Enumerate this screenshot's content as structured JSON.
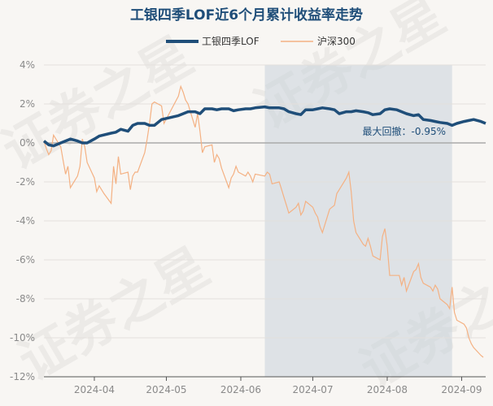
{
  "chart_data": {
    "type": "line",
    "title": "工银四季LOF近6个月累计收益率走势",
    "legend": [
      {
        "name": "工银四季LOF",
        "color": "#1f4e79"
      },
      {
        "name": "沪深300",
        "color": "#f4b183"
      }
    ],
    "ylim": [
      -12,
      4
    ],
    "yticks": [
      "4%",
      "2%",
      "0%",
      "-2%",
      "-4%",
      "-6%",
      "-8%",
      "-10%",
      "-12%"
    ],
    "xticks": [
      "2024-04",
      "2024-05",
      "2024-06",
      "2024-07",
      "2024-08",
      "2024-09"
    ],
    "annotation": "最大回撤：-0.95%",
    "drawdown_range": [
      "2024-06-11",
      "2024-08-28"
    ],
    "series": [
      {
        "name": "工银四季LOF",
        "color": "#1f4e79",
        "points": [
          [
            "2024-03-11",
            0.1
          ],
          [
            "2024-03-13",
            -0.1
          ],
          [
            "2024-03-15",
            -0.15
          ],
          [
            "2024-03-18",
            0.0
          ],
          [
            "2024-03-20",
            0.1
          ],
          [
            "2024-03-22",
            0.2
          ],
          [
            "2024-03-25",
            0.1
          ],
          [
            "2024-03-27",
            0.0
          ],
          [
            "2024-03-29",
            0.0
          ],
          [
            "2024-04-01",
            0.2
          ],
          [
            "2024-04-03",
            0.35
          ],
          [
            "2024-04-08",
            0.5
          ],
          [
            "2024-04-10",
            0.55
          ],
          [
            "2024-04-12",
            0.7
          ],
          [
            "2024-04-15",
            0.6
          ],
          [
            "2024-04-17",
            0.9
          ],
          [
            "2024-04-19",
            1.0
          ],
          [
            "2024-04-22",
            1.0
          ],
          [
            "2024-04-24",
            0.9
          ],
          [
            "2024-04-26",
            0.9
          ],
          [
            "2024-04-29",
            1.2
          ],
          [
            "2024-05-06",
            1.4
          ],
          [
            "2024-05-08",
            1.5
          ],
          [
            "2024-05-10",
            1.6
          ],
          [
            "2024-05-13",
            1.6
          ],
          [
            "2024-05-15",
            1.5
          ],
          [
            "2024-05-17",
            1.75
          ],
          [
            "2024-05-20",
            1.75
          ],
          [
            "2024-05-22",
            1.7
          ],
          [
            "2024-05-24",
            1.75
          ],
          [
            "2024-05-27",
            1.75
          ],
          [
            "2024-05-29",
            1.65
          ],
          [
            "2024-05-31",
            1.7
          ],
          [
            "2024-06-03",
            1.75
          ],
          [
            "2024-06-05",
            1.75
          ],
          [
            "2024-06-07",
            1.8
          ],
          [
            "2024-06-11",
            1.85
          ],
          [
            "2024-06-13",
            1.8
          ],
          [
            "2024-06-17",
            1.8
          ],
          [
            "2024-06-19",
            1.75
          ],
          [
            "2024-06-21",
            1.6
          ],
          [
            "2024-06-24",
            1.5
          ],
          [
            "2024-06-26",
            1.45
          ],
          [
            "2024-06-28",
            1.7
          ],
          [
            "2024-07-01",
            1.7
          ],
          [
            "2024-07-03",
            1.75
          ],
          [
            "2024-07-05",
            1.8
          ],
          [
            "2024-07-08",
            1.75
          ],
          [
            "2024-07-10",
            1.7
          ],
          [
            "2024-07-12",
            1.5
          ],
          [
            "2024-07-15",
            1.6
          ],
          [
            "2024-07-17",
            1.6
          ],
          [
            "2024-07-19",
            1.65
          ],
          [
            "2024-07-22",
            1.6
          ],
          [
            "2024-07-24",
            1.55
          ],
          [
            "2024-07-26",
            1.45
          ],
          [
            "2024-07-29",
            1.5
          ],
          [
            "2024-07-31",
            1.7
          ],
          [
            "2024-08-02",
            1.75
          ],
          [
            "2024-08-05",
            1.7
          ],
          [
            "2024-08-07",
            1.6
          ],
          [
            "2024-08-09",
            1.5
          ],
          [
            "2024-08-12",
            1.4
          ],
          [
            "2024-08-14",
            1.45
          ],
          [
            "2024-08-16",
            1.2
          ],
          [
            "2024-08-19",
            1.15
          ],
          [
            "2024-08-21",
            1.1
          ],
          [
            "2024-08-23",
            1.05
          ],
          [
            "2024-08-26",
            1.0
          ],
          [
            "2024-08-28",
            0.9
          ],
          [
            "2024-08-30",
            1.0
          ],
          [
            "2024-09-02",
            1.1
          ],
          [
            "2024-09-04",
            1.15
          ],
          [
            "2024-09-06",
            1.2
          ],
          [
            "2024-09-09",
            1.1
          ],
          [
            "2024-09-11",
            1.0
          ]
        ]
      },
      {
        "name": "沪深300",
        "color": "#f4b183",
        "points": [
          [
            "2024-03-11",
            0.1
          ],
          [
            "2024-03-12",
            -0.3
          ],
          [
            "2024-03-13",
            -0.6
          ],
          [
            "2024-03-14",
            -0.4
          ],
          [
            "2024-03-15",
            0.4
          ],
          [
            "2024-03-18",
            -0.2
          ],
          [
            "2024-03-19",
            -0.9
          ],
          [
            "2024-03-20",
            -1.6
          ],
          [
            "2024-03-21",
            -1.2
          ],
          [
            "2024-03-22",
            -2.3
          ],
          [
            "2024-03-25",
            -1.7
          ],
          [
            "2024-03-26",
            -1.2
          ],
          [
            "2024-03-27",
            0.2
          ],
          [
            "2024-03-28",
            -0.2
          ],
          [
            "2024-03-29",
            -1.0
          ],
          [
            "2024-04-01",
            -1.8
          ],
          [
            "2024-04-02",
            -2.5
          ],
          [
            "2024-04-03",
            -2.2
          ],
          [
            "2024-04-05",
            -2.6
          ],
          [
            "2024-04-08",
            -3.1
          ],
          [
            "2024-04-09",
            -1.2
          ],
          [
            "2024-04-10",
            -2.1
          ],
          [
            "2024-04-11",
            -0.7
          ],
          [
            "2024-04-12",
            -1.6
          ],
          [
            "2024-04-15",
            -1.5
          ],
          [
            "2024-04-16",
            -2.4
          ],
          [
            "2024-04-17",
            -1.7
          ],
          [
            "2024-04-18",
            -1.5
          ],
          [
            "2024-04-19",
            -1.5
          ],
          [
            "2024-04-22",
            -0.5
          ],
          [
            "2024-04-23",
            0.2
          ],
          [
            "2024-04-24",
            1.0
          ],
          [
            "2024-04-25",
            2.0
          ],
          [
            "2024-04-26",
            2.1
          ],
          [
            "2024-04-29",
            1.9
          ],
          [
            "2024-04-30",
            1.0
          ],
          [
            "2024-05-06",
            2.4
          ],
          [
            "2024-05-07",
            2.9
          ],
          [
            "2024-05-08",
            2.6
          ],
          [
            "2024-05-09",
            2.2
          ],
          [
            "2024-05-10",
            2.0
          ],
          [
            "2024-05-13",
            0.8
          ],
          [
            "2024-05-14",
            1.5
          ],
          [
            "2024-05-15",
            0.6
          ],
          [
            "2024-05-16",
            -0.5
          ],
          [
            "2024-05-17",
            -0.2
          ],
          [
            "2024-05-20",
            -0.1
          ],
          [
            "2024-05-21",
            -1.0
          ],
          [
            "2024-05-22",
            -0.6
          ],
          [
            "2024-05-23",
            -0.8
          ],
          [
            "2024-05-24",
            -1.3
          ],
          [
            "2024-05-27",
            -2.3
          ],
          [
            "2024-05-28",
            -1.8
          ],
          [
            "2024-05-29",
            -1.6
          ],
          [
            "2024-05-30",
            -1.2
          ],
          [
            "2024-05-31",
            -1.5
          ],
          [
            "2024-06-03",
            -1.7
          ],
          [
            "2024-06-04",
            -1.5
          ],
          [
            "2024-06-05",
            -1.7
          ],
          [
            "2024-06-06",
            -2.0
          ],
          [
            "2024-06-07",
            -1.6
          ],
          [
            "2024-06-11",
            -1.7
          ],
          [
            "2024-06-12",
            -1.5
          ],
          [
            "2024-06-13",
            -1.6
          ],
          [
            "2024-06-14",
            -2.1
          ],
          [
            "2024-06-17",
            -2.0
          ],
          [
            "2024-06-18",
            -2.4
          ],
          [
            "2024-06-19",
            -2.8
          ],
          [
            "2024-06-20",
            -3.2
          ],
          [
            "2024-06-21",
            -3.6
          ],
          [
            "2024-06-24",
            -3.3
          ],
          [
            "2024-06-25",
            -3.1
          ],
          [
            "2024-06-26",
            -3.7
          ],
          [
            "2024-06-27",
            -3.5
          ],
          [
            "2024-06-28",
            -3.0
          ],
          [
            "2024-07-01",
            -3.3
          ],
          [
            "2024-07-02",
            -3.6
          ],
          [
            "2024-07-03",
            -3.8
          ],
          [
            "2024-07-04",
            -4.3
          ],
          [
            "2024-07-05",
            -4.6
          ],
          [
            "2024-07-08",
            -3.4
          ],
          [
            "2024-07-09",
            -3.3
          ],
          [
            "2024-07-10",
            -3.2
          ],
          [
            "2024-07-11",
            -2.6
          ],
          [
            "2024-07-12",
            -2.4
          ],
          [
            "2024-07-15",
            -1.8
          ],
          [
            "2024-07-16",
            -1.5
          ],
          [
            "2024-07-17",
            -2.5
          ],
          [
            "2024-07-18",
            -4.0
          ],
          [
            "2024-07-19",
            -4.6
          ],
          [
            "2024-07-22",
            -5.2
          ],
          [
            "2024-07-23",
            -5.3
          ],
          [
            "2024-07-24",
            -4.9
          ],
          [
            "2024-07-25",
            -5.3
          ],
          [
            "2024-07-26",
            -5.8
          ],
          [
            "2024-07-29",
            -6.0
          ],
          [
            "2024-07-30",
            -4.8
          ],
          [
            "2024-07-31",
            -4.4
          ],
          [
            "2024-08-01",
            -5.3
          ],
          [
            "2024-08-02",
            -6.8
          ],
          [
            "2024-08-05",
            -6.8
          ],
          [
            "2024-08-06",
            -6.8
          ],
          [
            "2024-08-07",
            -7.3
          ],
          [
            "2024-08-08",
            -6.9
          ],
          [
            "2024-08-09",
            -7.6
          ],
          [
            "2024-08-12",
            -6.6
          ],
          [
            "2024-08-13",
            -6.5
          ],
          [
            "2024-08-14",
            -6.2
          ],
          [
            "2024-08-15",
            -6.9
          ],
          [
            "2024-08-16",
            -7.2
          ],
          [
            "2024-08-19",
            -7.4
          ],
          [
            "2024-08-20",
            -7.6
          ],
          [
            "2024-08-21",
            -7.3
          ],
          [
            "2024-08-22",
            -7.5
          ],
          [
            "2024-08-23",
            -8.0
          ],
          [
            "2024-08-26",
            -8.3
          ],
          [
            "2024-08-27",
            -8.5
          ],
          [
            "2024-08-28",
            -7.4
          ],
          [
            "2024-08-29",
            -8.7
          ],
          [
            "2024-08-30",
            -9.1
          ],
          [
            "2024-09-02",
            -9.3
          ],
          [
            "2024-09-03",
            -9.5
          ],
          [
            "2024-09-04",
            -10.0
          ],
          [
            "2024-09-05",
            -10.3
          ],
          [
            "2024-09-06",
            -10.5
          ],
          [
            "2024-09-09",
            -10.9
          ],
          [
            "2024-09-10",
            -11.0
          ]
        ]
      }
    ]
  },
  "watermark": "证券之星"
}
